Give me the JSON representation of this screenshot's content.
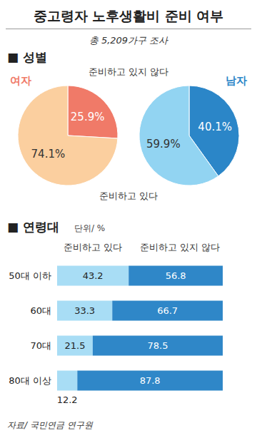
{
  "title": "중고령자 노후생활비 준비 여부",
  "subtitle": "총 5,209가구 조사",
  "source": "자료/ 국민연금 연구원",
  "chart_data": [
    {
      "type": "pie",
      "section": "■ 성별",
      "title": "여자",
      "categories": [
        "준비하고 있지 않다",
        "준비하고 있다"
      ],
      "values": [
        25.9,
        74.1
      ],
      "value_labels": [
        "25.9%",
        "74.1%"
      ],
      "colors": [
        "#f07a68",
        "#fbcf9f"
      ],
      "data_labels": true
    },
    {
      "type": "pie",
      "title": "남자",
      "categories": [
        "준비하고 있지 않다",
        "준비하고 있다"
      ],
      "values": [
        40.1,
        59.9
      ],
      "value_labels": [
        "40.1%",
        "59.9%"
      ],
      "colors": [
        "#2b86c8",
        "#92d4f2"
      ],
      "data_labels": true
    },
    {
      "type": "bar",
      "section": "■ 연령대",
      "unit": "단위/ %",
      "orientation": "horizontal",
      "stacked": true,
      "data_labels": true,
      "tick_labels": "y",
      "categories": [
        "50대 이하",
        "60대",
        "70대",
        "80대 이상"
      ],
      "series": [
        {
          "name": "준비하고 있다",
          "color": "#a8ddf5",
          "values": [
            43.2,
            33.3,
            21.5,
            12.2
          ]
        },
        {
          "name": "준비하고 있지 않다",
          "color": "#2f87c8",
          "values": [
            56.8,
            66.7,
            78.5,
            87.8
          ]
        }
      ],
      "xlim": [
        0,
        100
      ]
    }
  ]
}
